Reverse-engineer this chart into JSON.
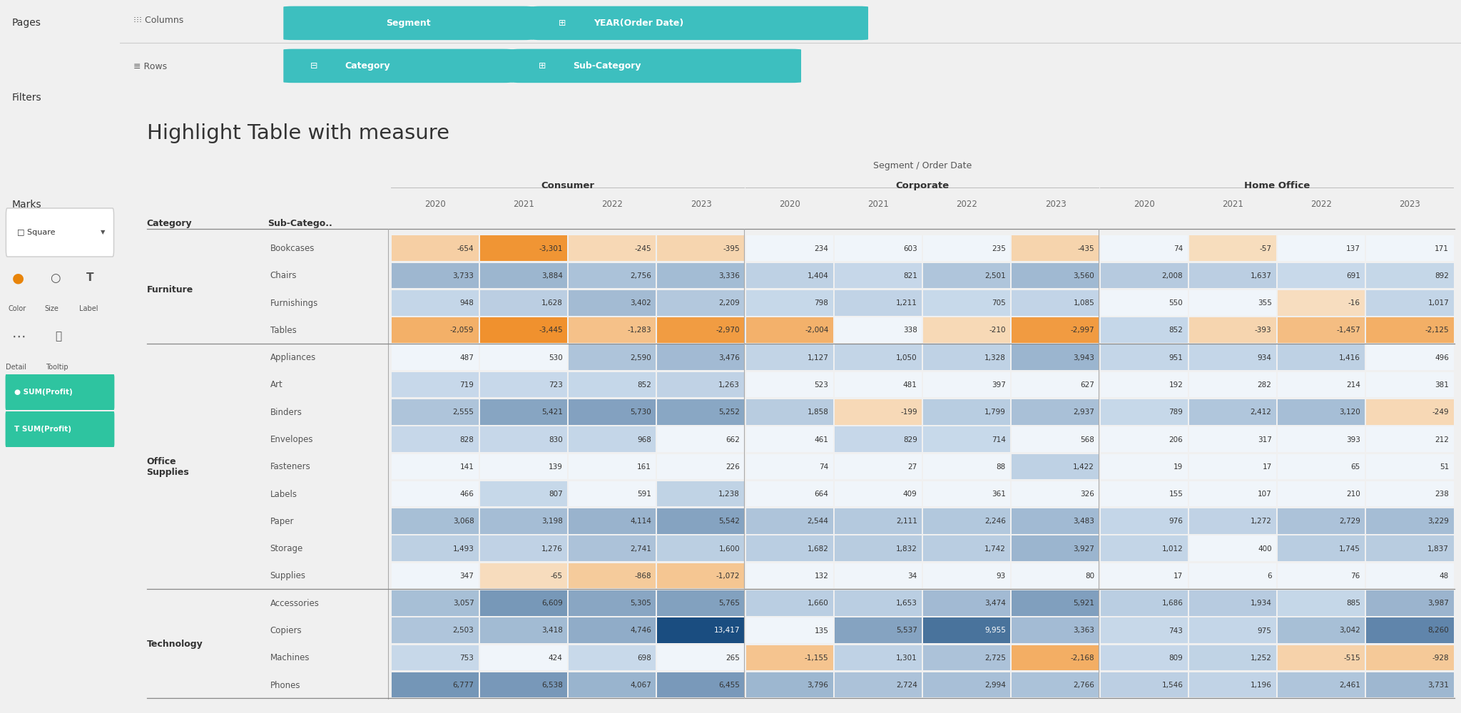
{
  "title": "Highlight Table with measure",
  "segment_label": "Segment / Order Date",
  "segments": [
    "Consumer",
    "Corporate",
    "Home Office"
  ],
  "years": [
    "2020",
    "2021",
    "2022",
    "2023"
  ],
  "rows": [
    {
      "category": "Furniture",
      "subcategory": "Bookcases",
      "Consumer": [
        -654,
        -3301,
        -245,
        -395
      ],
      "Corporate": [
        234,
        603,
        235,
        -435
      ],
      "Home Office": [
        74,
        -57,
        137,
        171
      ]
    },
    {
      "category": "Furniture",
      "subcategory": "Chairs",
      "Consumer": [
        3733,
        3884,
        2756,
        3336
      ],
      "Corporate": [
        1404,
        821,
        2501,
        3560
      ],
      "Home Office": [
        2008,
        1637,
        691,
        892
      ]
    },
    {
      "category": "Furniture",
      "subcategory": "Furnishings",
      "Consumer": [
        948,
        1628,
        3402,
        2209
      ],
      "Corporate": [
        798,
        1211,
        705,
        1085
      ],
      "Home Office": [
        550,
        355,
        -16,
        1017
      ]
    },
    {
      "category": "Furniture",
      "subcategory": "Tables",
      "Consumer": [
        -2059,
        -3445,
        -1283,
        -2970
      ],
      "Corporate": [
        -2004,
        338,
        -210,
        -2997
      ],
      "Home Office": [
        852,
        -393,
        -1457,
        -2125
      ]
    },
    {
      "category": "Office Supplies",
      "subcategory": "Appliances",
      "Consumer": [
        487,
        530,
        2590,
        3476
      ],
      "Corporate": [
        1127,
        1050,
        1328,
        3943
      ],
      "Home Office": [
        951,
        934,
        1416,
        496
      ]
    },
    {
      "category": "Office Supplies",
      "subcategory": "Art",
      "Consumer": [
        719,
        723,
        852,
        1263
      ],
      "Corporate": [
        523,
        481,
        397,
        627
      ],
      "Home Office": [
        192,
        282,
        214,
        381
      ]
    },
    {
      "category": "Office Supplies",
      "subcategory": "Binders",
      "Consumer": [
        2555,
        5421,
        5730,
        5252
      ],
      "Corporate": [
        1858,
        -199,
        1799,
        2937
      ],
      "Home Office": [
        789,
        2412,
        3120,
        -249
      ]
    },
    {
      "category": "Office Supplies",
      "subcategory": "Envelopes",
      "Consumer": [
        828,
        830,
        968,
        662
      ],
      "Corporate": [
        461,
        829,
        714,
        568
      ],
      "Home Office": [
        206,
        317,
        393,
        212
      ]
    },
    {
      "category": "Office Supplies",
      "subcategory": "Fasteners",
      "Consumer": [
        141,
        139,
        161,
        226
      ],
      "Corporate": [
        74,
        27,
        88,
        1422
      ],
      "Home Office": [
        19,
        17,
        65,
        51
      ]
    },
    {
      "category": "Office Supplies",
      "subcategory": "Labels",
      "Consumer": [
        466,
        807,
        591,
        1238
      ],
      "Corporate": [
        664,
        409,
        361,
        326
      ],
      "Home Office": [
        155,
        107,
        210,
        238
      ]
    },
    {
      "category": "Office Supplies",
      "subcategory": "Paper",
      "Consumer": [
        3068,
        3198,
        4114,
        5542
      ],
      "Corporate": [
        2544,
        2111,
        2246,
        3483
      ],
      "Home Office": [
        976,
        1272,
        2729,
        3229
      ]
    },
    {
      "category": "Office Supplies",
      "subcategory": "Storage",
      "Consumer": [
        1493,
        1276,
        2741,
        1600
      ],
      "Corporate": [
        1682,
        1832,
        1742,
        3927
      ],
      "Home Office": [
        1012,
        400,
        1745,
        1837
      ]
    },
    {
      "category": "Office Supplies",
      "subcategory": "Supplies",
      "Consumer": [
        347,
        -65,
        -868,
        -1072
      ],
      "Corporate": [
        132,
        34,
        93,
        80
      ],
      "Home Office": [
        17,
        6,
        76,
        48
      ]
    },
    {
      "category": "Technology",
      "subcategory": "Accessories",
      "Consumer": [
        3057,
        6609,
        5305,
        5765
      ],
      "Corporate": [
        1660,
        1653,
        3474,
        5921
      ],
      "Home Office": [
        1686,
        1934,
        885,
        3987
      ]
    },
    {
      "category": "Technology",
      "subcategory": "Copiers",
      "Consumer": [
        2503,
        3418,
        4746,
        13417
      ],
      "Corporate": [
        135,
        5537,
        9955,
        3363
      ],
      "Home Office": [
        743,
        975,
        3042,
        8260
      ]
    },
    {
      "category": "Technology",
      "subcategory": "Machines",
      "Consumer": [
        753,
        424,
        698,
        265
      ],
      "Corporate": [
        -1155,
        1301,
        2725,
        -2168
      ],
      "Home Office": [
        809,
        1252,
        -515,
        -928
      ]
    },
    {
      "category": "Technology",
      "subcategory": "Phones",
      "Consumer": [
        6777,
        6538,
        4067,
        6455
      ],
      "Corporate": [
        3796,
        2724,
        2994,
        2766
      ],
      "Home Office": [
        1546,
        1196,
        2461,
        3731
      ]
    }
  ],
  "cat_groups": [
    {
      "name": "Furniture",
      "start": 0,
      "end": 3
    },
    {
      "name": "Office\nSupplies",
      "start": 4,
      "end": 12
    },
    {
      "name": "Technology",
      "start": 13,
      "end": 16
    }
  ],
  "sidebar_bg": "#e9e9e9",
  "main_bg": "#ffffff",
  "top_bg": "#f0f0f0",
  "teal_pill": "#3dbfbf",
  "green_btn": "#2ec4a0"
}
